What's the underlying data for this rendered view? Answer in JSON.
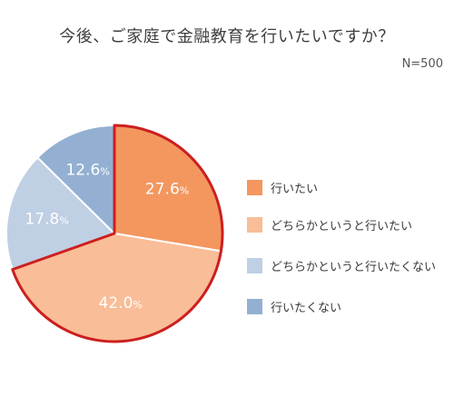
{
  "title": "今後、ご家庭で金融教育を行いたいですか？",
  "sample_size": "N=500",
  "colors": {
    "highlight_outline": "#cc1f1f",
    "slice_divider": "#ffffff",
    "label_text": "#ffffff"
  },
  "chart_data": {
    "type": "pie",
    "title": "今後、ご家庭で金融教育を行いたいですか？",
    "legend_placement": "right",
    "slices": [
      {
        "label": "行いたい",
        "value": 27.6,
        "display_value": "27.6",
        "unit": "%",
        "color": "#f3975f",
        "highlighted": true
      },
      {
        "label": "どちらかというと行いたい",
        "value": 42.0,
        "display_value": "42.0",
        "unit": "%",
        "color": "#f9bd97",
        "highlighted": true
      },
      {
        "label": "どちらかというと行いたくない",
        "value": 17.8,
        "display_value": "17.8",
        "unit": "%",
        "color": "#bfcfe4",
        "highlighted": false
      },
      {
        "label": "行いたくない",
        "value": 12.6,
        "display_value": "12.6",
        "unit": "%",
        "color": "#93b0d2",
        "highlighted": false
      }
    ]
  }
}
